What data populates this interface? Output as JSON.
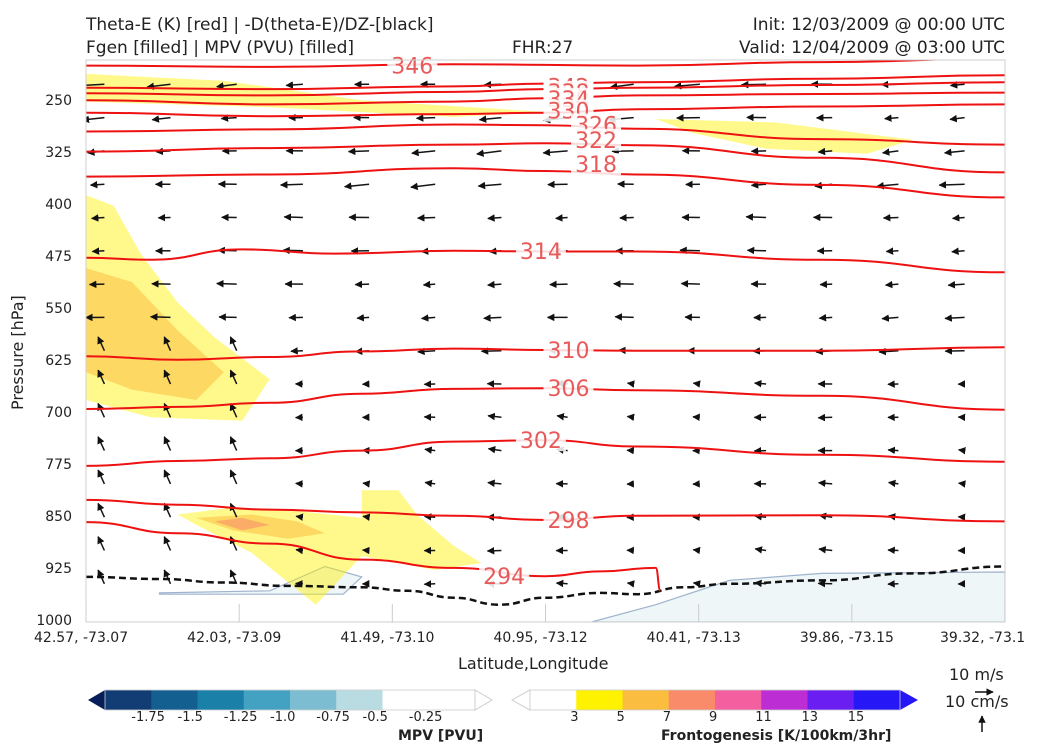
{
  "header": {
    "line1_left": "Theta-E (K) [red] | -D(theta-E)/DZ-[black]",
    "line2_left": "Fgen [filled] | MPV (PVU) [filled]",
    "fhr": "FHR:27",
    "init": "Init: 12/03/2009 @ 00:00 UTC",
    "valid": "Valid: 12/04/2009 @ 03:00 UTC"
  },
  "chart_data": {
    "type": "cross-section",
    "xlabel": "Latitude,Longitude",
    "ylabel": "Pressure [hPa]",
    "x_ticks": [
      "42.57, -73.07",
      "42.03, -73.09",
      "41.49, -73.10",
      "40.95, -73.12",
      "40.41, -73.13",
      "39.86, -73.15",
      "39.32, -73.1"
    ],
    "y_ticks": [
      250,
      325,
      400,
      475,
      550,
      625,
      700,
      775,
      850,
      925,
      1000
    ],
    "ylim": [
      1000,
      190
    ],
    "theta_e_contours": [
      {
        "value": 346,
        "label": "346",
        "points": [
          [
            0,
            198
          ],
          [
            0.2,
            200
          ],
          [
            0.4,
            196
          ],
          [
            0.6,
            198
          ],
          [
            0.8,
            193
          ],
          [
            1,
            188
          ]
        ]
      },
      {
        "value": 342,
        "label": "342",
        "points": [
          [
            0,
            230
          ],
          [
            0.2,
            232
          ],
          [
            0.4,
            228
          ],
          [
            0.5,
            224
          ],
          [
            0.6,
            222
          ],
          [
            0.8,
            217
          ],
          [
            1,
            212
          ]
        ]
      },
      {
        "value": 338,
        "label": "338",
        "points": [
          [
            0,
            238
          ],
          [
            0.2,
            241
          ],
          [
            0.4,
            236
          ],
          [
            0.5,
            232
          ],
          [
            0.6,
            230
          ],
          [
            0.8,
            226
          ],
          [
            1,
            222
          ]
        ]
      },
      {
        "value": 334,
        "label": "334",
        "points": [
          [
            0,
            248
          ],
          [
            0.2,
            254
          ],
          [
            0.4,
            250
          ],
          [
            0.5,
            245
          ],
          [
            0.6,
            241
          ],
          [
            0.8,
            239
          ],
          [
            1,
            237
          ]
        ]
      },
      {
        "value": 330,
        "label": "330",
        "points": [
          [
            0,
            266
          ],
          [
            0.2,
            271
          ],
          [
            0.4,
            268
          ],
          [
            0.5,
            266
          ],
          [
            0.6,
            261
          ],
          [
            0.8,
            257
          ],
          [
            1,
            254
          ]
        ]
      },
      {
        "value": 326,
        "label": "326",
        "points": [
          [
            0,
            293
          ],
          [
            0.2,
            290
          ],
          [
            0.4,
            283
          ],
          [
            0.5,
            284
          ],
          [
            0.6,
            289
          ],
          [
            0.8,
            304
          ],
          [
            1,
            312
          ]
        ]
      },
      {
        "value": 322,
        "label": "322",
        "points": [
          [
            0,
            322
          ],
          [
            0.2,
            317
          ],
          [
            0.4,
            312
          ],
          [
            0.5,
            310
          ],
          [
            0.6,
            313
          ],
          [
            0.8,
            331
          ],
          [
            1,
            352
          ]
        ]
      },
      {
        "value": 318,
        "label": "318",
        "points": [
          [
            0,
            358
          ],
          [
            0.2,
            355
          ],
          [
            0.4,
            346
          ],
          [
            0.5,
            350
          ],
          [
            0.6,
            355
          ],
          [
            0.8,
            370
          ],
          [
            1,
            388
          ]
        ]
      },
      {
        "value": 314,
        "label": "314",
        "points": [
          [
            0,
            475
          ],
          [
            0.07,
            478
          ],
          [
            0.17,
            463
          ],
          [
            0.27,
            469
          ],
          [
            0.4,
            465
          ],
          [
            0.5,
            466
          ],
          [
            0.6,
            466
          ],
          [
            0.8,
            478
          ],
          [
            1,
            496
          ]
        ]
      },
      {
        "value": 310,
        "label": "310",
        "points": [
          [
            0,
            617
          ],
          [
            0.1,
            622
          ],
          [
            0.2,
            618
          ],
          [
            0.3,
            610
          ],
          [
            0.4,
            606
          ],
          [
            0.5,
            608
          ],
          [
            0.6,
            609
          ],
          [
            0.8,
            609
          ],
          [
            1,
            604
          ]
        ]
      },
      {
        "value": 306,
        "label": "306",
        "points": [
          [
            0,
            693
          ],
          [
            0.1,
            690
          ],
          [
            0.2,
            684
          ],
          [
            0.3,
            671
          ],
          [
            0.4,
            664
          ],
          [
            0.5,
            663
          ],
          [
            0.6,
            666
          ],
          [
            0.8,
            674
          ],
          [
            1,
            694
          ]
        ]
      },
      {
        "value": 302,
        "label": "302",
        "points": [
          [
            0,
            775
          ],
          [
            0.1,
            768
          ],
          [
            0.2,
            764
          ],
          [
            0.3,
            753
          ],
          [
            0.4,
            740
          ],
          [
            0.5,
            738
          ],
          [
            0.6,
            747
          ],
          [
            0.8,
            759
          ],
          [
            1,
            769
          ]
        ]
      },
      {
        "value": 298,
        "label": "298",
        "points": [
          [
            0,
            824
          ],
          [
            0.1,
            831
          ],
          [
            0.2,
            838
          ],
          [
            0.3,
            842
          ],
          [
            0.4,
            847
          ],
          [
            0.5,
            853
          ],
          [
            0.6,
            847
          ],
          [
            0.8,
            846
          ],
          [
            1,
            855
          ]
        ]
      },
      {
        "value": 294,
        "label": "294",
        "points": [
          [
            0,
            856
          ],
          [
            0.1,
            872
          ],
          [
            0.2,
            887
          ],
          [
            0.3,
            910
          ],
          [
            0.4,
            922
          ],
          [
            0.5,
            934
          ],
          [
            0.56,
            927
          ],
          [
            0.62,
            922
          ],
          [
            0.625,
            955
          ]
        ]
      }
    ],
    "fgen_regions": [
      {
        "level": "3",
        "points": [
          [
            0,
            385
          ],
          [
            0.03,
            400
          ],
          [
            0.06,
            470
          ],
          [
            0.1,
            540
          ],
          [
            0.14,
            590
          ],
          [
            0.2,
            650
          ],
          [
            0.17,
            710
          ],
          [
            0.07,
            705
          ],
          [
            0,
            680
          ]
        ]
      },
      {
        "level": "5",
        "points": [
          [
            0,
            490
          ],
          [
            0.05,
            510
          ],
          [
            0.1,
            580
          ],
          [
            0.15,
            640
          ],
          [
            0.12,
            680
          ],
          [
            0.05,
            665
          ],
          [
            0,
            640
          ]
        ]
      },
      {
        "level": "3",
        "points": [
          [
            0,
            210
          ],
          [
            0.15,
            220
          ],
          [
            0.3,
            248
          ],
          [
            0.5,
            265
          ],
          [
            0.4,
            272
          ],
          [
            0.2,
            258
          ],
          [
            0,
            250
          ]
        ]
      },
      {
        "level": "3",
        "points": [
          [
            0.62,
            275
          ],
          [
            0.75,
            280
          ],
          [
            0.9,
            305
          ],
          [
            0.85,
            325
          ],
          [
            0.74,
            318
          ],
          [
            0.66,
            295
          ]
        ]
      },
      {
        "level": "3",
        "points": [
          [
            0.1,
            845
          ],
          [
            0.16,
            835
          ],
          [
            0.23,
            840
          ],
          [
            0.3,
            850
          ],
          [
            0.3,
            810
          ],
          [
            0.34,
            810
          ],
          [
            0.36,
            845
          ],
          [
            0.4,
            890
          ],
          [
            0.43,
            915
          ],
          [
            0.38,
            925
          ],
          [
            0.3,
            905
          ],
          [
            0.25,
            975
          ],
          [
            0.18,
            900
          ],
          [
            0.12,
            860
          ]
        ]
      },
      {
        "level": "5",
        "points": [
          [
            0.12,
            850
          ],
          [
            0.18,
            845
          ],
          [
            0.23,
            855
          ],
          [
            0.26,
            872
          ],
          [
            0.22,
            880
          ],
          [
            0.16,
            868
          ]
        ]
      },
      {
        "level": "7",
        "points": [
          [
            0.14,
            855
          ],
          [
            0.17,
            850
          ],
          [
            0.2,
            860
          ],
          [
            0.17,
            868
          ]
        ]
      }
    ],
    "mpv_regions": [
      {
        "level": "-0.25",
        "points": [
          [
            0.55,
            1000
          ],
          [
            0.62,
            975
          ],
          [
            0.7,
            940
          ],
          [
            0.8,
            930
          ],
          [
            1,
            928
          ],
          [
            1,
            1000
          ]
        ]
      },
      {
        "level": "-0.25",
        "points": [
          [
            0.08,
            958
          ],
          [
            0.2,
            955
          ],
          [
            0.26,
            920
          ],
          [
            0.3,
            935
          ],
          [
            0.28,
            960
          ],
          [
            0.08,
            960
          ]
        ]
      }
    ],
    "dthetae_dz_zero_line": [
      [
        0,
        935
      ],
      [
        0.08,
        938
      ],
      [
        0.15,
        943
      ],
      [
        0.22,
        948
      ],
      [
        0.3,
        950
      ],
      [
        0.35,
        955
      ],
      [
        0.4,
        965
      ],
      [
        0.45,
        975
      ],
      [
        0.5,
        965
      ],
      [
        0.56,
        958
      ],
      [
        0.6,
        960
      ],
      [
        0.65,
        950
      ],
      [
        0.7,
        945
      ],
      [
        0.8,
        940
      ],
      [
        0.9,
        930
      ],
      [
        1,
        920
      ]
    ],
    "mpv_colorbar": {
      "title": "MPV [PVU]",
      "labels": [
        "-1.75",
        "-1.5",
        "-1.25",
        "-1.0",
        "-0.75",
        "-0.5",
        "-0.25"
      ],
      "colors": [
        "#071e58",
        "#123d74",
        "#135f90",
        "#1a80a8",
        "#43a1c2",
        "#7cbdd2",
        "#b9dce3",
        "#ffffff"
      ]
    },
    "fgen_colorbar": {
      "title": "Frontogenesis [K/100km/3hr]",
      "labels": [
        "3",
        "5",
        "7",
        "9",
        "11",
        "13",
        "15"
      ],
      "colors": [
        "#ffffff",
        "#fff200",
        "#fbbd3f",
        "#f98b6b",
        "#f4609f",
        "#bc2ed3",
        "#6a1ef2",
        "#2617f7"
      ]
    },
    "wind_reference": {
      "horizontal": "10 m/s",
      "vertical": "10 cm/s"
    }
  }
}
